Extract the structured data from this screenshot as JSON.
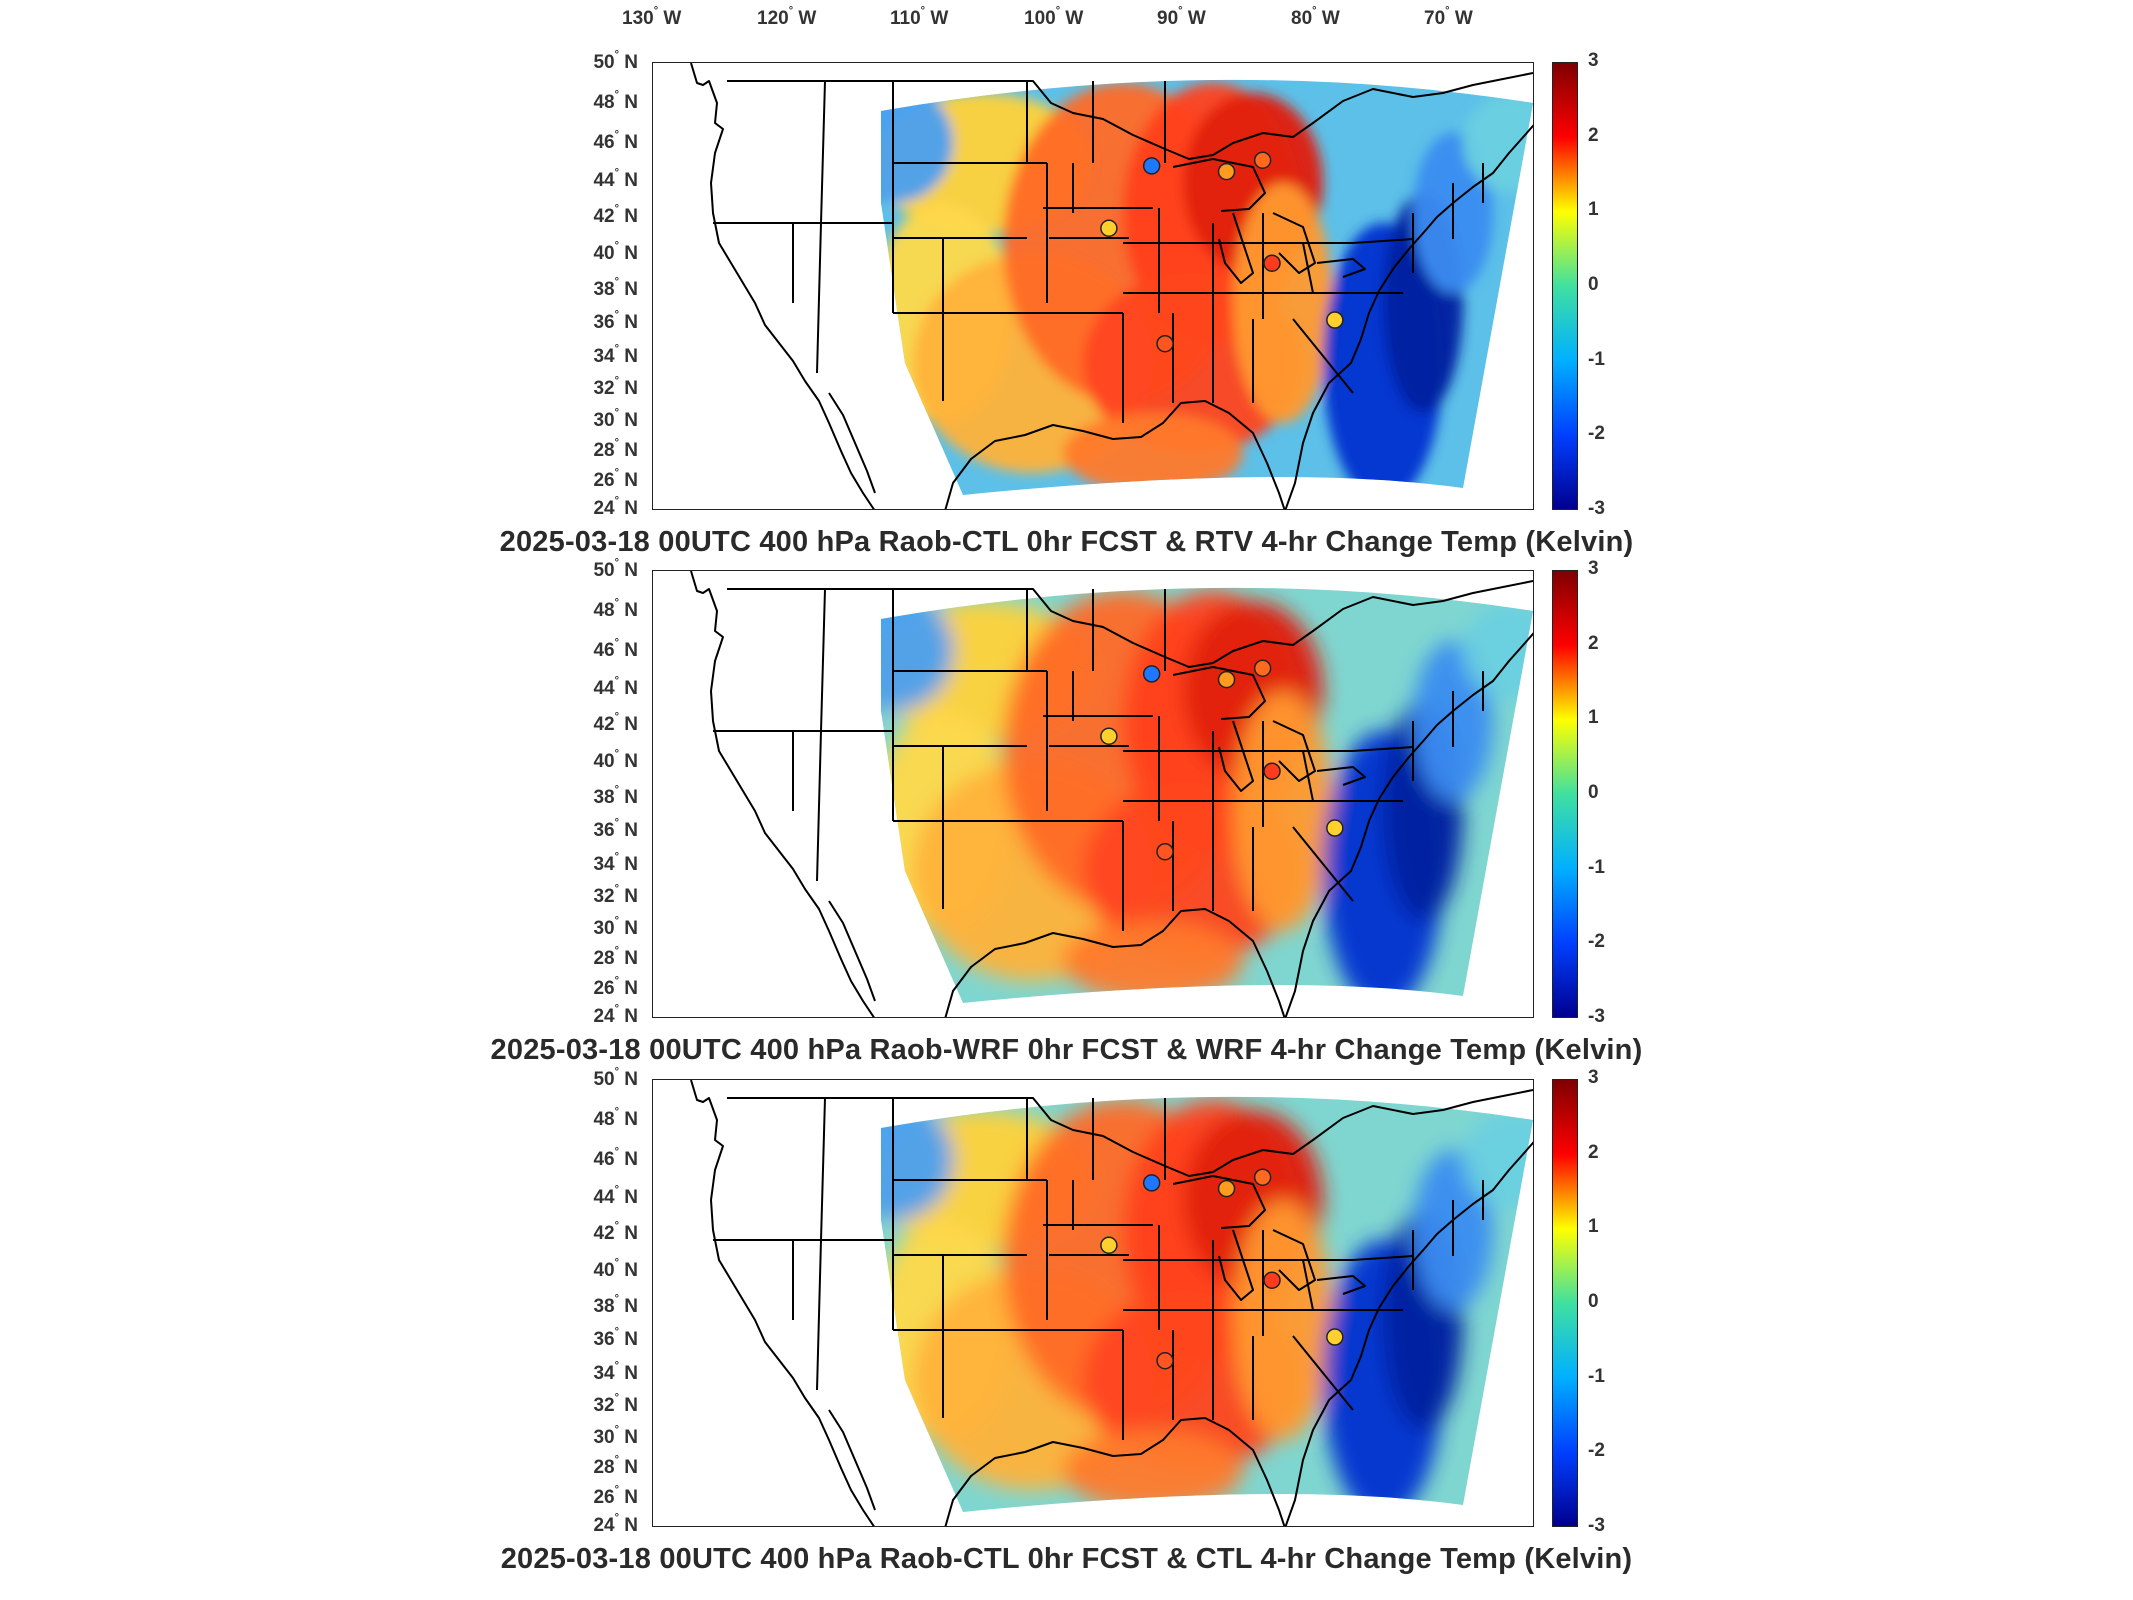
{
  "lon_labels": [
    "130",
    "120",
    "110",
    "100",
    "90",
    "80",
    "70"
  ],
  "lon_suffix": "W",
  "lat_labels": [
    "50",
    "48",
    "46",
    "44",
    "42",
    "40",
    "38",
    "36",
    "34",
    "32",
    "30",
    "28",
    "26",
    "24"
  ],
  "lat_suffix": "N",
  "degree_symbol": "°",
  "colorbar": {
    "ticks": [
      "3",
      "2",
      "1",
      "0",
      "-1",
      "-2",
      "-3"
    ],
    "range": [
      -3,
      3
    ],
    "colors": [
      "#7f0000",
      "#ff0000",
      "#ffff00",
      "#40e0a0",
      "#00b0ff",
      "#0040ff",
      "#00008f"
    ]
  },
  "panels": [
    {
      "title": "2025-03-18 00UTC 400 hPa Raob-CTL 0hr FCST & RTV 4-hr Change Temp (Kelvin)"
    },
    {
      "title": "2025-03-18 00UTC 400 hPa Raob-WRF 0hr FCST & WRF 4-hr Change Temp (Kelvin)"
    },
    {
      "title": "2025-03-18 00UTC 400 hPa Raob-CTL 0hr FCST & CTL 4-hr Change Temp (Kelvin)"
    }
  ],
  "stations": [
    {
      "lon": -93.6,
      "lat": 44.9,
      "color": "#1e78ff"
    },
    {
      "lon": -88.0,
      "lat": 44.6,
      "color": "#ff9b1e"
    },
    {
      "lon": -85.3,
      "lat": 45.2,
      "color": "#ff6a1e"
    },
    {
      "lon": -96.8,
      "lat": 41.5,
      "color": "#ffcf2e"
    },
    {
      "lon": -84.6,
      "lat": 39.6,
      "color": "#ff3b1e"
    },
    {
      "lon": -92.6,
      "lat": 34.9,
      "color": "#ff5520"
    },
    {
      "lon": -79.9,
      "lat": 36.3,
      "color": "#ffd02e"
    }
  ]
}
